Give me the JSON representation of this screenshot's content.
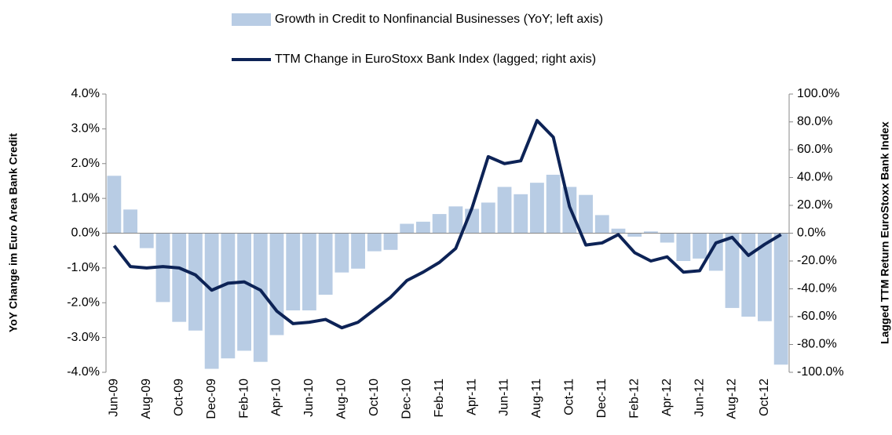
{
  "chart_data": {
    "type": "bar-line",
    "categories": [
      "Jun-09",
      null,
      "Aug-09",
      null,
      "Oct-09",
      null,
      "Dec-09",
      null,
      "Feb-10",
      null,
      "Apr-10",
      null,
      "Jun-10",
      null,
      "Aug-10",
      null,
      "Oct-10",
      null,
      "Dec-10",
      null,
      "Feb-11",
      null,
      "Apr-11",
      null,
      "Jun-11",
      null,
      "Aug-11",
      null,
      "Oct-11",
      null,
      "Dec-11",
      null,
      "Feb-12",
      null,
      "Apr-12",
      null,
      "Jun-12",
      null,
      "Aug-12",
      null,
      "Oct-12",
      null
    ],
    "series": [
      {
        "name": "Growth in Credit to Nonfinancial Businesses (YoY; left axis)",
        "type": "bar",
        "color": "#b8cce4",
        "axis": "y",
        "values": [
          1.65,
          0.68,
          -0.43,
          -1.98,
          -2.55,
          -2.8,
          -3.9,
          -3.6,
          -3.38,
          -3.7,
          -2.93,
          -2.22,
          -2.22,
          -1.77,
          -1.13,
          -1.02,
          -0.52,
          -0.48,
          0.27,
          0.33,
          0.55,
          0.77,
          0.7,
          0.88,
          1.33,
          1.12,
          1.45,
          1.68,
          1.33,
          1.1,
          0.52,
          0.13,
          -0.1,
          0.05,
          -0.27,
          -0.8,
          -0.73,
          -1.08,
          -2.15,
          -2.4,
          -2.53,
          -3.78
        ]
      },
      {
        "name": "TTM Change in EuroStoxx Bank Index (lagged; right axis)",
        "type": "line",
        "color": "#0d2356",
        "axis": "y2",
        "values": [
          -9,
          -24,
          -25,
          -24,
          -25,
          -30,
          -41,
          -36,
          -35,
          -41,
          -56,
          -65,
          -64,
          -62,
          -68,
          -64,
          -55,
          -46,
          -34,
          -28,
          -21,
          -11,
          18,
          55,
          50,
          52,
          81,
          69,
          19,
          -8.5,
          -7,
          -1,
          -14,
          -20,
          -17,
          -28,
          -27,
          -7,
          -3,
          -16,
          -8,
          -1
        ]
      }
    ],
    "ylabel": "YoY Change im Euro Area Bank Credit",
    "y2label": "Lagged TTM Return EuroStoxx Bank Index",
    "ylim": [
      -4,
      4
    ],
    "yticks": [
      {
        "value": -4,
        "label": "-4.0%"
      },
      {
        "value": -3,
        "label": "-3.0%"
      },
      {
        "value": -2,
        "label": "-2.0%"
      },
      {
        "value": -1,
        "label": "-1.0%"
      },
      {
        "value": 0,
        "label": "0.0%"
      },
      {
        "value": 1,
        "label": "1.0%"
      },
      {
        "value": 2,
        "label": "2.0%"
      },
      {
        "value": 3,
        "label": "3.0%"
      },
      {
        "value": 4,
        "label": "4.0%"
      }
    ],
    "y2lim": [
      -100,
      100
    ],
    "y2ticks": [
      {
        "value": -100,
        "label": "-100.0%"
      },
      {
        "value": -80,
        "label": "-80.0%"
      },
      {
        "value": -60,
        "label": "-60.0%"
      },
      {
        "value": -40,
        "label": "-40.0%"
      },
      {
        "value": -20,
        "label": "-20.0%"
      },
      {
        "value": 0,
        "label": "0.0%"
      },
      {
        "value": 20,
        "label": "20.0%"
      },
      {
        "value": 40,
        "label": "40.0%"
      },
      {
        "value": 60,
        "label": "60.0%"
      },
      {
        "value": 80,
        "label": "80.0%"
      },
      {
        "value": 100,
        "label": "100.0%"
      }
    ],
    "grid": false
  }
}
